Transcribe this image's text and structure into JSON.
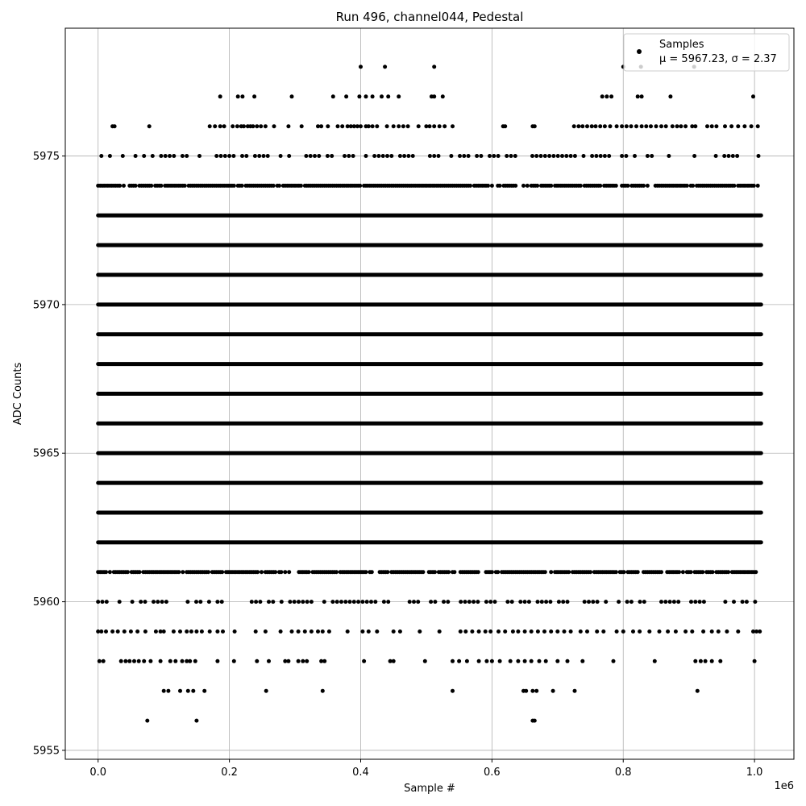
{
  "chart_data": {
    "type": "scatter",
    "title": "Run 496, channel044, Pedestal",
    "xlabel": "Sample #",
    "ylabel": "ADC Counts",
    "x_offset_text": "1e6",
    "xlim": [
      -50000,
      1060000
    ],
    "ylim": [
      5954.7,
      5979.3
    ],
    "x_ticks": [
      0,
      200000,
      400000,
      600000,
      800000,
      1000000
    ],
    "x_tick_labels": [
      "0.0",
      "0.2",
      "0.4",
      "0.6",
      "0.8",
      "1.0"
    ],
    "y_ticks": [
      5955,
      5960,
      5965,
      5970,
      5975
    ],
    "y_tick_labels": [
      "5955",
      "5960",
      "5965",
      "5970",
      "5975"
    ],
    "grid": true,
    "marker_color": "#000000",
    "legend": {
      "placement": "upper right",
      "label": "Samples",
      "stats": "μ = 5967.23, σ = 2.37"
    },
    "series": [
      {
        "name": "Samples",
        "x_range": [
          0,
          1010000
        ],
        "bands": [
          {
            "y": 5956,
            "x": [
              75000,
              150000,
              662000,
              665000
            ]
          },
          {
            "y": 5957,
            "x": [
              100000,
              107000,
              125000,
              137000,
              145000,
              162000,
              256000,
              342000,
              540000,
              648000,
              652000,
              662000,
              668000,
              693000,
              726000,
              913000
            ]
          },
          {
            "y": 5958,
            "x": [
              2000,
              8000,
              35000,
              42000,
              48000,
              55000,
              62000,
              70000,
              80000,
              95000,
              110000,
              118000,
              128000,
              135000,
              140000,
              148000,
              182000,
              207000,
              242000,
              260000,
              285000,
              290000,
              305000,
              312000,
              318000,
              340000,
              345000,
              405000,
              445000,
              450000,
              498000,
              540000,
              550000,
              562000,
              580000,
              592000,
              600000,
              612000,
              628000,
              640000,
              650000,
              660000,
              672000,
              682000,
              700000,
              715000,
              738000,
              785000,
              848000,
              910000,
              918000,
              925000,
              935000,
              948000,
              1000000
            ]
          },
          {
            "y": 5959,
            "x": [
              0,
              5000,
              12000,
              22000,
              30000,
              40000,
              50000,
              60000,
              72000,
              88000,
              95000,
              100000,
              115000,
              125000,
              135000,
              142000,
              150000,
              158000,
              170000,
              182000,
              190000,
              208000,
              240000,
              255000,
              278000,
              295000,
              305000,
              315000,
              325000,
              335000,
              342000,
              352000,
              380000,
              403000,
              412000,
              425000,
              450000,
              460000,
              490000,
              520000,
              552000,
              560000,
              570000,
              580000,
              590000,
              598000,
              610000,
              620000,
              632000,
              640000,
              650000,
              660000,
              670000,
              680000,
              690000,
              700000,
              710000,
              720000,
              735000,
              745000,
              760000,
              770000,
              790000,
              800000,
              815000,
              825000,
              840000,
              855000,
              868000,
              880000,
              895000,
              905000,
              922000,
              935000,
              945000,
              958000,
              975000,
              998000,
              1003000,
              1008000
            ]
          },
          {
            "y": 5960,
            "x_from": 0,
            "x_to": 1010000,
            "density": "moderate"
          },
          {
            "y": 5961,
            "x_from": 0,
            "x_to": 1010000,
            "density": "dense"
          },
          {
            "y": 5962,
            "x_from": 0,
            "x_to": 1010000,
            "density": "continuous"
          },
          {
            "y": 5963,
            "x_from": 0,
            "x_to": 1010000,
            "density": "continuous"
          },
          {
            "y": 5964,
            "x_from": 0,
            "x_to": 1010000,
            "density": "continuous"
          },
          {
            "y": 5965,
            "x_from": 0,
            "x_to": 1010000,
            "density": "continuous"
          },
          {
            "y": 5966,
            "x_from": 0,
            "x_to": 1010000,
            "density": "continuous"
          },
          {
            "y": 5967,
            "x_from": 0,
            "x_to": 1010000,
            "density": "continuous"
          },
          {
            "y": 5968,
            "x_from": 0,
            "x_to": 1010000,
            "density": "continuous"
          },
          {
            "y": 5969,
            "x_from": 0,
            "x_to": 1010000,
            "density": "continuous"
          },
          {
            "y": 5970,
            "x_from": 0,
            "x_to": 1010000,
            "density": "continuous"
          },
          {
            "y": 5971,
            "x_from": 0,
            "x_to": 1010000,
            "density": "continuous"
          },
          {
            "y": 5972,
            "x_from": 0,
            "x_to": 1010000,
            "density": "continuous"
          },
          {
            "y": 5973,
            "x_from": 0,
            "x_to": 1010000,
            "density": "continuous"
          },
          {
            "y": 5974,
            "x_from": 0,
            "x_to": 1010000,
            "density": "dense"
          },
          {
            "y": 5975,
            "x_from": 5000,
            "x_to": 1010000,
            "density": "moderate"
          },
          {
            "y": 5976,
            "x": [
              22000,
              25000,
              78000,
              170000,
              178000,
              186000,
              192000,
              205000,
              212000,
              218000,
              222000,
              228000,
              232000,
              236000,
              242000,
              248000,
              255000,
              268000,
              290000,
              310000,
              335000,
              340000,
              350000,
              365000,
              372000,
              380000,
              385000,
              390000,
              395000,
              400000,
              408000,
              412000,
              418000,
              425000,
              440000,
              450000,
              458000,
              465000,
              472000,
              488000,
              500000,
              505000,
              512000,
              520000,
              528000,
              540000,
              617000,
              620000,
              662000,
              665000,
              725000,
              732000,
              738000,
              745000,
              752000,
              758000,
              765000,
              772000,
              780000,
              790000,
              798000,
              805000,
              812000,
              820000,
              828000,
              835000,
              842000,
              850000,
              858000,
              865000,
              875000,
              882000,
              888000,
              895000,
              905000,
              910000,
              928000,
              935000,
              942000,
              955000,
              965000,
              975000,
              985000,
              995000,
              1005000
            ]
          },
          {
            "y": 5977,
            "x": [
              186000,
              213000,
              220000,
              238000,
              295000,
              358000,
              378000,
              398000,
              408000,
              418000,
              432000,
              442000,
              458000,
              508000,
              512000,
              525000,
              768000,
              775000,
              782000,
              822000,
              828000,
              872000,
              998000
            ]
          },
          {
            "y": 5978,
            "x": [
              400000,
              437000,
              512000,
              800000,
              827000,
              908000
            ]
          }
        ]
      }
    ]
  }
}
